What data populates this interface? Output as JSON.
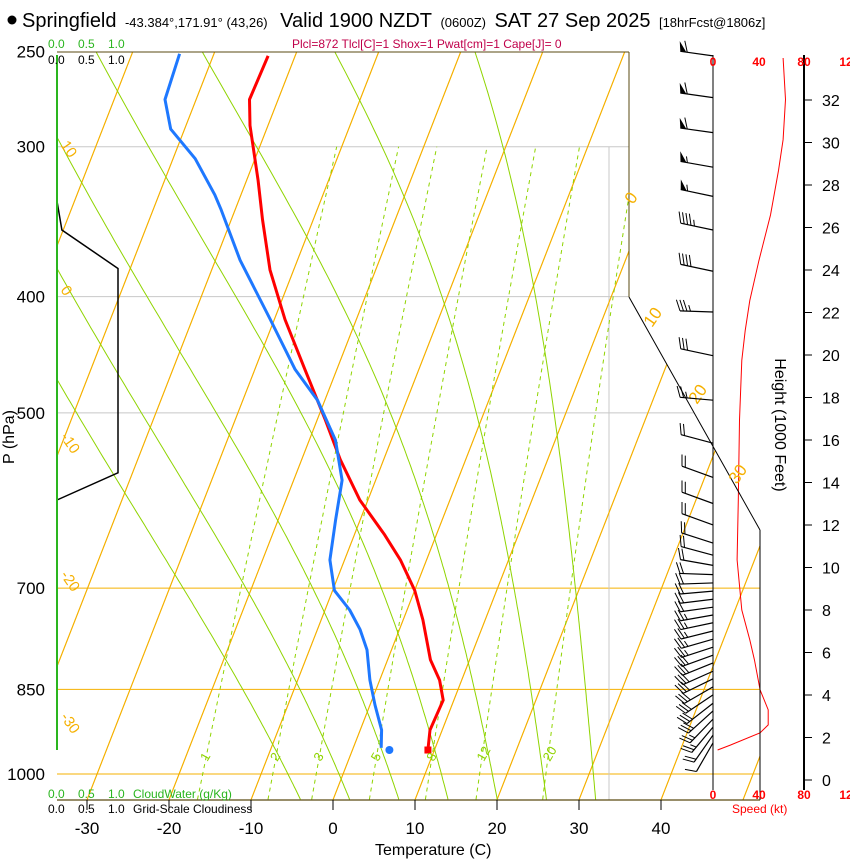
{
  "header": {
    "location": "Springfield",
    "coords": "-43.384°,171.91° (43,26)",
    "valid": "Valid 1900 NZDT",
    "utc": "(0600Z)",
    "date": "SAT 27 Sep 2025",
    "forecast": "[18hrFcst@1806z]",
    "params": "Plcl=872 Tlcl[C]=1 Shox=1 Pwat[cm]=1 Cape[J]= 0"
  },
  "colors": {
    "temperature": "#ff0000",
    "dewpoint": "#1e78ff",
    "isotherm": "#f5b000",
    "moist": "#8fd400",
    "params": "#c0004a",
    "speed": "#ff0000"
  },
  "chart_data": {
    "type": "line",
    "subtype": "skew-t log-p sounding",
    "xlabel": "Temperature (C)",
    "ylabel": "P (hPa)",
    "y2label": "Height (1000 Feet)",
    "temperature_ticks": [
      "-30",
      "-20",
      "-10",
      "0",
      "10",
      "20",
      "30",
      "40"
    ],
    "temperature_tick_values": [
      -30,
      -20,
      -10,
      0,
      10,
      20,
      30,
      40
    ],
    "pressure_ticks": [
      250,
      300,
      400,
      500,
      700,
      850,
      1000
    ],
    "pressure_tick_labels": [
      "250",
      "300",
      "400",
      "500",
      "700",
      "850",
      "1000"
    ],
    "height_ticks": [
      "0",
      "2",
      "4",
      "6",
      "8",
      "10",
      "12",
      "14",
      "16",
      "18",
      "20",
      "22",
      "24",
      "26",
      "28",
      "30",
      "32"
    ],
    "cloudwater_ticks": [
      "0.0",
      "0.5",
      "1.0"
    ],
    "cloudwater_label": "CloudWater (g/Kg)",
    "cloudiness_ticks": [
      "0.0",
      "0.5",
      "1.0"
    ],
    "cloudiness_label": "Grid-Scale Cloudiness",
    "speed_ticks": [
      "0",
      "40",
      "80",
      "12"
    ],
    "speed_label": "Speed (kt)",
    "mixing_ratio_lines": [
      1,
      2,
      3,
      5,
      8,
      12,
      20
    ],
    "mixing_ratio_labels": [
      "1",
      "2",
      "3",
      "5",
      "8",
      "12",
      "20"
    ],
    "left_line_labels": [
      "10",
      "0",
      "-10",
      "-20",
      "-30"
    ],
    "right_line_labels": [
      "0",
      "10",
      "20",
      "30"
    ],
    "temperature": [
      [
        955,
        9.2
      ],
      [
        919,
        8.5
      ],
      [
        868,
        8.7
      ],
      [
        835,
        7.3
      ],
      [
        803,
        5.2
      ],
      [
        744,
        2.4
      ],
      [
        703,
        0.0
      ],
      [
        663,
        -3.2
      ],
      [
        632,
        -6.3
      ],
      [
        591,
        -11.0
      ],
      [
        547,
        -15.3
      ],
      [
        507,
        -19.0
      ],
      [
        460,
        -23.9
      ],
      [
        418,
        -28.7
      ],
      [
        380,
        -32.9
      ],
      [
        345,
        -36.2
      ],
      [
        320,
        -38.6
      ],
      [
        288,
        -42.2
      ],
      [
        274,
        -43.5
      ],
      [
        252,
        -43.3
      ]
    ],
    "dewpoint": [
      [
        951,
        3.4
      ],
      [
        919,
        2.6
      ],
      [
        876,
        0.6
      ],
      [
        835,
        -1.2
      ],
      [
        788,
        -3.0
      ],
      [
        758,
        -4.8
      ],
      [
        730,
        -7.0
      ],
      [
        703,
        -9.8
      ],
      [
        663,
        -11.8
      ],
      [
        614,
        -13.0
      ],
      [
        569,
        -14.1
      ],
      [
        527,
        -16.8
      ],
      [
        488,
        -20.9
      ],
      [
        460,
        -25.1
      ],
      [
        418,
        -30.5
      ],
      [
        373,
        -37.0
      ],
      [
        338,
        -41.8
      ],
      [
        329,
        -43.2
      ],
      [
        307,
        -47.3
      ],
      [
        290,
        -51.7
      ],
      [
        274,
        -53.8
      ],
      [
        251,
        -54.2
      ]
    ],
    "surface": {
      "pressure": 955,
      "temperature": 9.2,
      "dewpoint": 4.5
    },
    "grid_cloudiness": [
      [
        333,
        0
      ],
      [
        352,
        0.08
      ],
      [
        379,
        1.0
      ],
      [
        561,
        1.0
      ],
      [
        591,
        0
      ]
    ],
    "wind_speed_profile": [
      [
        253,
        61
      ],
      [
        274,
        63
      ],
      [
        296,
        61
      ],
      [
        314,
        57
      ],
      [
        342,
        50
      ],
      [
        373,
        40
      ],
      [
        403,
        32
      ],
      [
        427,
        28
      ],
      [
        452,
        25
      ],
      [
        507,
        23
      ],
      [
        591,
        22
      ],
      [
        663,
        21
      ],
      [
        730,
        25
      ],
      [
        773,
        32
      ],
      [
        803,
        36
      ],
      [
        851,
        41
      ],
      [
        884,
        48
      ],
      [
        910,
        48
      ],
      [
        924,
        41
      ],
      [
        946,
        15
      ],
      [
        955,
        4
      ]
    ],
    "wind_barbs": [
      {
        "p": 252,
        "spd": 60,
        "dir": 278
      },
      {
        "p": 273,
        "spd": 60,
        "dir": 278
      },
      {
        "p": 292,
        "spd": 60,
        "dir": 278
      },
      {
        "p": 312,
        "spd": 55,
        "dir": 280
      },
      {
        "p": 330,
        "spd": 55,
        "dir": 282
      },
      {
        "p": 352,
        "spd": 45,
        "dir": 282
      },
      {
        "p": 381,
        "spd": 40,
        "dir": 282
      },
      {
        "p": 412,
        "spd": 35,
        "dir": 272
      },
      {
        "p": 448,
        "spd": 30,
        "dir": 282
      },
      {
        "p": 488,
        "spd": 25,
        "dir": 275
      },
      {
        "p": 530,
        "spd": 20,
        "dir": 285
      },
      {
        "p": 566,
        "spd": 20,
        "dir": 290
      },
      {
        "p": 595,
        "spd": 20,
        "dir": 290
      },
      {
        "p": 620,
        "spd": 20,
        "dir": 290
      },
      {
        "p": 642,
        "spd": 20,
        "dir": 288
      },
      {
        "p": 657,
        "spd": 20,
        "dir": 285
      },
      {
        "p": 670,
        "spd": 20,
        "dir": 280
      },
      {
        "p": 682,
        "spd": 20,
        "dir": 272
      },
      {
        "p": 693,
        "spd": 20,
        "dir": 268
      },
      {
        "p": 704,
        "spd": 20,
        "dir": 265
      },
      {
        "p": 715,
        "spd": 20,
        "dir": 263
      },
      {
        "p": 726,
        "spd": 20,
        "dir": 262
      },
      {
        "p": 737,
        "spd": 25,
        "dir": 260
      },
      {
        "p": 748,
        "spd": 25,
        "dir": 258
      },
      {
        "p": 760,
        "spd": 25,
        "dir": 256
      },
      {
        "p": 772,
        "spd": 25,
        "dir": 254
      },
      {
        "p": 784,
        "spd": 25,
        "dir": 252
      },
      {
        "p": 796,
        "spd": 30,
        "dir": 250
      },
      {
        "p": 808,
        "spd": 30,
        "dir": 248
      },
      {
        "p": 821,
        "spd": 30,
        "dir": 246
      },
      {
        "p": 833,
        "spd": 30,
        "dir": 244
      },
      {
        "p": 846,
        "spd": 30,
        "dir": 240
      },
      {
        "p": 859,
        "spd": 30,
        "dir": 236
      },
      {
        "p": 873,
        "spd": 30,
        "dir": 232
      },
      {
        "p": 886,
        "spd": 30,
        "dir": 228
      },
      {
        "p": 900,
        "spd": 25,
        "dir": 224
      },
      {
        "p": 914,
        "spd": 25,
        "dir": 220
      },
      {
        "p": 928,
        "spd": 20,
        "dir": 215
      },
      {
        "p": 942,
        "spd": 10,
        "dir": 210
      }
    ]
  }
}
